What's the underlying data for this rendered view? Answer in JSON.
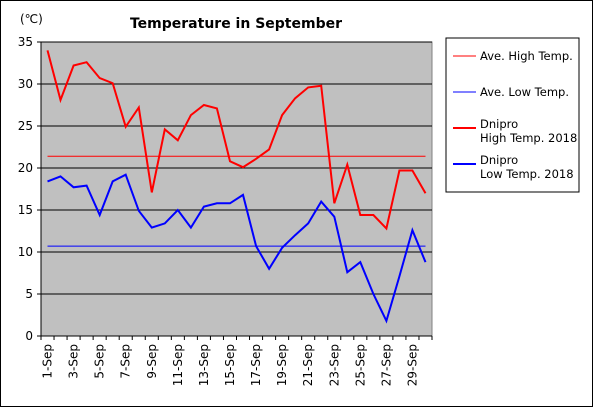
{
  "chart_data": {
    "type": "line",
    "title": "Temperature in September",
    "unit_label": "(℃)",
    "ylim": [
      0,
      35
    ],
    "y_ticks": [
      0,
      5,
      10,
      15,
      20,
      25,
      30,
      35
    ],
    "x_tick_labels": [
      "1-Sep",
      "3-Sep",
      "5-Sep",
      "7-Sep",
      "9-Sep",
      "11-Sep",
      "13-Sep",
      "15-Sep",
      "17-Sep",
      "19-Sep",
      "21-Sep",
      "23-Sep",
      "25-Sep",
      "27-Sep",
      "29-Sep"
    ],
    "days": [
      1,
      2,
      3,
      4,
      5,
      6,
      7,
      8,
      9,
      10,
      11,
      12,
      13,
      14,
      15,
      16,
      17,
      18,
      19,
      20,
      21,
      22,
      23,
      24,
      25,
      26,
      27,
      28,
      29,
      30
    ],
    "grid": true,
    "legend_position": "right",
    "series": [
      {
        "name": "Ave. High Temp.",
        "color": "#ff0000",
        "width": 1,
        "values": [
          21.4,
          21.4,
          21.4,
          21.4,
          21.4,
          21.4,
          21.4,
          21.4,
          21.4,
          21.4,
          21.4,
          21.4,
          21.4,
          21.4,
          21.4,
          21.4,
          21.4,
          21.4,
          21.4,
          21.4,
          21.4,
          21.4,
          21.4,
          21.4,
          21.4,
          21.4,
          21.4,
          21.4,
          21.4,
          21.4
        ]
      },
      {
        "name": "Ave. Low Temp.",
        "color": "#0000ff",
        "width": 1,
        "values": [
          10.7,
          10.7,
          10.7,
          10.7,
          10.7,
          10.7,
          10.7,
          10.7,
          10.7,
          10.7,
          10.7,
          10.7,
          10.7,
          10.7,
          10.7,
          10.7,
          10.7,
          10.7,
          10.7,
          10.7,
          10.7,
          10.7,
          10.7,
          10.7,
          10.7,
          10.7,
          10.7,
          10.7,
          10.7,
          10.7
        ]
      },
      {
        "name": "Dnipro High Temp. 2018",
        "legend_lines": [
          "Dnipro",
          "High Temp. 2018"
        ],
        "color": "#ff0000",
        "width": 2,
        "values": [
          34.0,
          28.1,
          32.2,
          32.6,
          30.7,
          30.1,
          24.9,
          27.2,
          17.1,
          24.6,
          23.3,
          26.3,
          27.5,
          27.1,
          20.8,
          20.1,
          21.1,
          22.2,
          26.3,
          28.3,
          29.6,
          29.8,
          15.8,
          20.4,
          14.4,
          14.4,
          12.8,
          19.7,
          19.7,
          17.0
        ]
      },
      {
        "name": "Dnipro Low Temp. 2018",
        "legend_lines": [
          "Dnipro",
          "Low Temp. 2018"
        ],
        "color": "#0000ff",
        "width": 2,
        "values": [
          18.4,
          19.0,
          17.7,
          17.9,
          14.4,
          18.4,
          19.2,
          14.9,
          12.9,
          13.4,
          15.0,
          12.9,
          15.4,
          15.8,
          15.8,
          16.8,
          10.7,
          8.0,
          10.5,
          12.0,
          13.4,
          16.0,
          14.2,
          7.6,
          8.8,
          5.0,
          1.8,
          7.1,
          12.6,
          8.8
        ]
      }
    ]
  }
}
